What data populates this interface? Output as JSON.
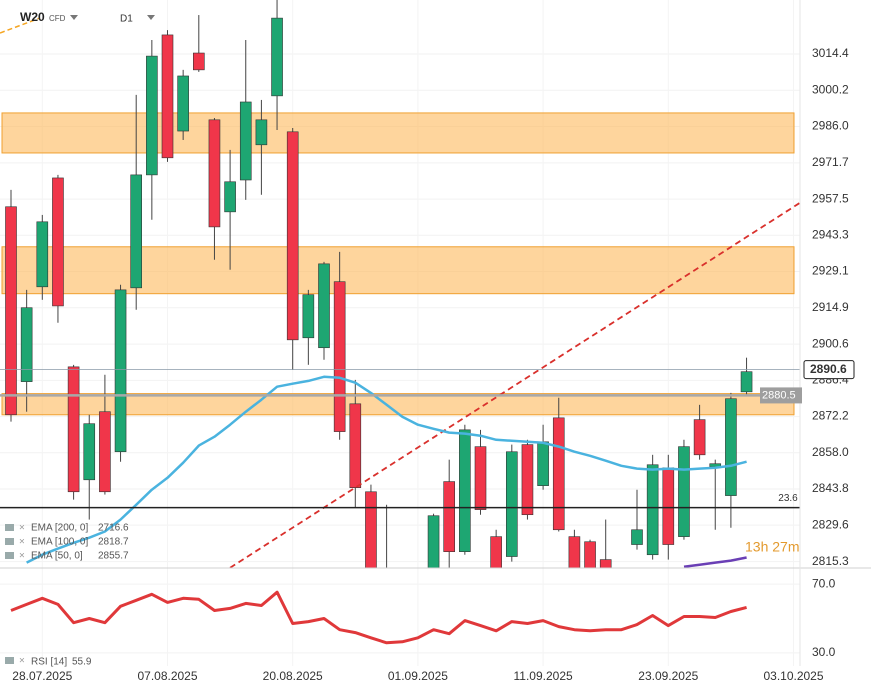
{
  "chart_data": {
    "type": "candlestick",
    "symbol": "W20",
    "instrument": "CFD",
    "timeframe": "D1",
    "categories": [
      null,
      null,
      "28.07.2025",
      null,
      null,
      null,
      null,
      null,
      null,
      null,
      "07.08.2025",
      null,
      null,
      null,
      null,
      null,
      null,
      null,
      "20.08.2025",
      null,
      null,
      null,
      null,
      null,
      null,
      null,
      "01.09.2025",
      null,
      null,
      null,
      null,
      null,
      null,
      null,
      "11.09.2025",
      null,
      null,
      null,
      null,
      null,
      null,
      null,
      "23.09.2025",
      null,
      null,
      null,
      null,
      null,
      null,
      null,
      "03.10.2025"
    ],
    "up_color": "#1ea672",
    "down_color": "#f0364a",
    "open": [
      2954.5,
      2885.9,
      2923.1,
      2965.8,
      2891.7,
      2847.4,
      2874.1,
      2858.4,
      2922.7,
      2967.0,
      3021.9,
      2984.2,
      3014.8,
      2988.6,
      2952.5,
      2965.0,
      2978.8,
      2998.0,
      2983.9,
      2903.1,
      2899.2,
      2925.1,
      2877.2,
      2842.7,
      2811.0,
      2805.0,
      2800.0,
      2810.2,
      2846.7,
      2819.2,
      2860.4,
      2825.1,
      2817.3,
      2861.2,
      2845.1,
      2871.7,
      2825.1,
      2823.1,
      2816.1,
      2806.0,
      2822.0,
      2818.0,
      2852.1,
      2825.1,
      2871.0,
      2852.5,
      2841.2,
      2881.9,
      null,
      null,
      null
    ],
    "high": [
      2961.1,
      2921.9,
      2951.3,
      2967.0,
      2892.5,
      2872.9,
      2888.6,
      2923.9,
      2998.4,
      3019.9,
      3023.8,
      3008.2,
      3029.7,
      2989.3,
      2976.8,
      3019.9,
      2996.4,
      3036.0,
      2985.4,
      2921.9,
      2932.9,
      2936.8,
      2886.6,
      2845.5,
      2837.6,
      2810.0,
      2812.0,
      2834.1,
      2855.3,
      2869.0,
      2867.0,
      2827.8,
      2861.2,
      2863.1,
      2869.0,
      2879.6,
      2827.8,
      2823.9,
      2831.8,
      2812.0,
      2843.5,
      2857.2,
      2857.2,
      2863.1,
      2876.8,
      2855.3,
      2881.5,
      2895.3,
      null,
      null,
      null
    ],
    "low": [
      2870.2,
      2874.1,
      2918.0,
      2909.0,
      2839.6,
      2831.8,
      2841.6,
      2854.5,
      2914.1,
      2949.4,
      2972.1,
      2980.7,
      3007.4,
      2933.7,
      2929.8,
      2957.2,
      2959.2,
      2984.6,
      2890.6,
      2892.5,
      2894.5,
      2863.1,
      2836.5,
      2806.0,
      2795.0,
      2792.0,
      2795.0,
      2805.0,
      2810.0,
      2818.0,
      2833.7,
      2805.0,
      2815.3,
      2831.8,
      2843.5,
      2827.1,
      2805.0,
      2805.0,
      2800.0,
      2800.0,
      2820.0,
      2816.1,
      2816.1,
      2823.9,
      2855.3,
      2827.8,
      2828.6,
      2880.8,
      null,
      null,
      null
    ],
    "close": [
      2872.9,
      2914.9,
      2948.6,
      2915.6,
      2842.7,
      2869.4,
      2842.7,
      2921.9,
      2967.0,
      3013.6,
      2973.7,
      3005.8,
      3008.2,
      2946.6,
      2964.3,
      2995.6,
      2988.6,
      3028.5,
      2902.3,
      2920.0,
      2932.1,
      2866.3,
      2844.3,
      2810.2,
      2800.0,
      2798.0,
      2808.0,
      2833.3,
      2819.2,
      2867.0,
      2835.7,
      2810.2,
      2858.4,
      2833.7,
      2862.3,
      2827.8,
      2810.2,
      2810.2,
      2808.0,
      2810.0,
      2827.8,
      2853.3,
      2822.0,
      2860.4,
      2857.2,
      2853.7,
      2879.2,
      2889.8,
      null,
      null,
      null
    ],
    "series": [
      {
        "name": "EMA [50, 0]",
        "color": "#4ab3df",
        "values": [
          null,
          2814.9,
          2818.0,
          2820.4,
          2822.7,
          2824.7,
          2827.1,
          2831.8,
          2837.6,
          2843.5,
          2848.2,
          2854.1,
          2860.8,
          2864.3,
          2869.0,
          2874.1,
          2878.8,
          2883.9,
          2885.1,
          2886.2,
          2887.8,
          2887.4,
          2885.5,
          2881.5,
          2876.8,
          2872.1,
          2869.0,
          2867.4,
          2865.9,
          2865.5,
          2864.7,
          2863.1,
          2862.7,
          2862.3,
          2861.9,
          2860.4,
          2858.4,
          2856.8,
          2854.9,
          2852.9,
          2851.8,
          2851.4,
          2851.8,
          2851.4,
          2851.8,
          2852.1,
          2852.9,
          2854.5,
          null,
          null,
          null
        ]
      },
      {
        "name": "EMA [100, 0]",
        "color": "#6a3fb5",
        "values": [
          null,
          null,
          null,
          null,
          null,
          null,
          null,
          null,
          null,
          null,
          null,
          null,
          null,
          null,
          null,
          null,
          null,
          null,
          null,
          null,
          null,
          null,
          null,
          null,
          null,
          null,
          null,
          null,
          null,
          null,
          null,
          null,
          null,
          null,
          null,
          null,
          null,
          null,
          null,
          null,
          null,
          null,
          null,
          2813.3,
          2814.1,
          2814.9,
          2815.7,
          2816.9,
          null,
          null,
          null
        ]
      }
    ],
    "indicators": [
      {
        "label": "EMA [200, 0]",
        "value": 2716.6
      },
      {
        "label": "EMA [100, 0]",
        "value": 2818.7
      },
      {
        "label": "EMA [50, 0]",
        "value": 2855.7
      }
    ],
    "ylim": [
      2812.8,
      3035.6
    ],
    "yticks": [
      3014.4,
      3000.2,
      {
        "value": 2986,
        "label": "2986.0"
      },
      2971.7,
      2957.5,
      2943.3,
      2929.1,
      2914.9,
      2900.6,
      2886.4,
      2872.2,
      {
        "value": 2858,
        "label": "2858.0"
      },
      2843.8,
      2829.6,
      2815.3
    ],
    "grid": true,
    "zones": [
      {
        "from": 2975.6,
        "to": 2991.3,
        "color": "#fdb95c"
      },
      {
        "from": 2920.4,
        "to": 2938.8,
        "color": "#fdb95c"
      },
      {
        "from": 2872.9,
        "to": 2881.2,
        "color": "#fdb95c"
      }
    ],
    "last_price": 2890.6,
    "level_line": 2880.5,
    "fib_level": {
      "name": "23.6",
      "value": 2836.5
    },
    "trend_line": {
      "x": [
        14,
        50.4
      ],
      "y": [
        2812.9,
        2956.0
      ],
      "color": "#d9302c"
    },
    "countdown": "13h 27m",
    "rsi": {
      "label": "RSI [14]",
      "last": 55.9,
      "color": "#e0383a",
      "values": [
        54.7,
        58.2,
        61.8,
        58.2,
        47.6,
        50.0,
        47.6,
        57.1,
        60.6,
        64.1,
        59.4,
        61.8,
        61.2,
        54.7,
        55.9,
        58.8,
        57.6,
        65.3,
        47.1,
        48.2,
        50.0,
        43.5,
        41.8,
        38.8,
        35.9,
        36.5,
        38.8,
        43.5,
        41.2,
        48.8,
        45.9,
        42.9,
        48.2,
        47.1,
        48.8,
        45.3,
        43.5,
        42.9,
        43.5,
        43.5,
        46.5,
        51.8,
        45.9,
        51.2,
        51.2,
        50.6,
        54.1,
        56.5,
        null,
        null,
        null
      ],
      "ylim": [
        22.4,
        79.4
      ],
      "yticks": [
        {
          "value": 70,
          "label": "70.0"
        },
        {
          "value": 30,
          "label": "30.0"
        }
      ]
    }
  }
}
